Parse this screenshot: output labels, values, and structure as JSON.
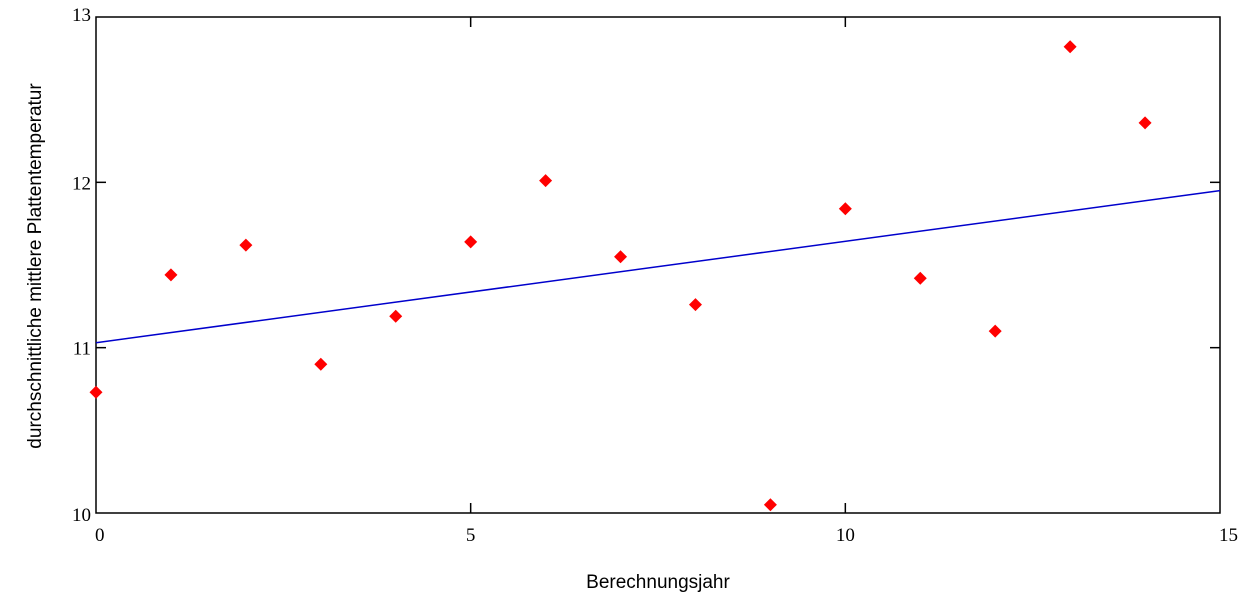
{
  "chart_data": {
    "type": "scatter",
    "xlabel": "Berechnungsjahr",
    "ylabel": "durchschnittliche mittlere Plattentemperatur",
    "xlim": [
      0,
      15
    ],
    "ylim": [
      10,
      13
    ],
    "x_ticks": [
      "0",
      "5",
      "10",
      "15"
    ],
    "y_ticks": [
      "10",
      "11",
      "12",
      "13"
    ],
    "grid": false,
    "series": [
      {
        "kind": "points",
        "marker": "diamond",
        "color": "#ff0000",
        "x": [
          0,
          1,
          2,
          3,
          4,
          5,
          6,
          7,
          8,
          9,
          10,
          11,
          12,
          13,
          14
        ],
        "y": [
          10.73,
          11.44,
          11.62,
          10.9,
          11.19,
          11.64,
          12.01,
          11.55,
          11.26,
          10.05,
          11.84,
          11.42,
          11.1,
          12.82,
          12.36
        ]
      },
      {
        "kind": "trend-line",
        "color": "#0000cc",
        "x": [
          0,
          15
        ],
        "y": [
          11.03,
          11.95
        ]
      }
    ]
  }
}
